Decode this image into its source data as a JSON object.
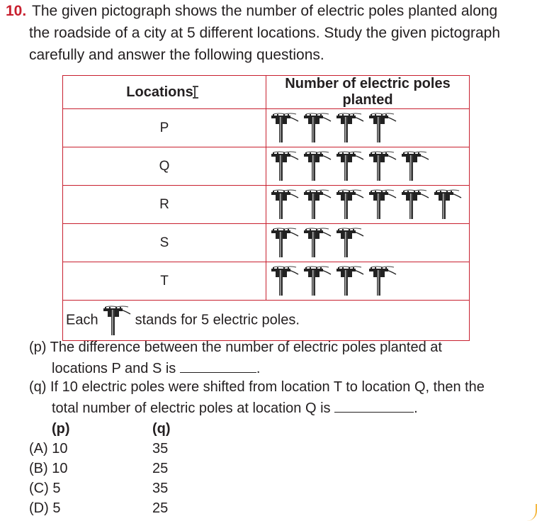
{
  "question": {
    "number": "10.",
    "line1": "The given pictograph shows the number of electric poles planted along",
    "line2": "the roadside of a city at 5 different locations. Study the given pictograph",
    "line3": "carefully and answer the following questions."
  },
  "pictograph": {
    "col_location": "Locations",
    "col_count": "Number of electric poles planted",
    "icon": "electric-pole-icon",
    "rows": [
      {
        "label": "P",
        "icons": 4
      },
      {
        "label": "Q",
        "icons": 5
      },
      {
        "label": "R",
        "icons": 6
      },
      {
        "label": "S",
        "icons": 3
      },
      {
        "label": "T",
        "icons": 4
      }
    ],
    "key_prefix": "Each",
    "key_suffix": "stands for 5 electric poles."
  },
  "subq_p": {
    "line1": "(p) The difference between the number of electric poles planted at",
    "line2_text": "locations P and S is",
    "line2_end": "."
  },
  "subq_q": {
    "line1": "(q) If 10 electric poles were shifted from location T to location Q, then the",
    "line2_text": "total number of electric poles at location Q is",
    "line2_end": "."
  },
  "options": {
    "head_p": "(p)",
    "head_q": "(q)",
    "items": [
      {
        "label": "(A) 10",
        "q": "35"
      },
      {
        "label": "(B) 10",
        "q": "25"
      },
      {
        "label": "(C) 5",
        "q": "35"
      },
      {
        "label": "(D) 5",
        "q": "25"
      }
    ]
  },
  "colors": {
    "accent": "#c8202f",
    "text": "#231f20"
  }
}
